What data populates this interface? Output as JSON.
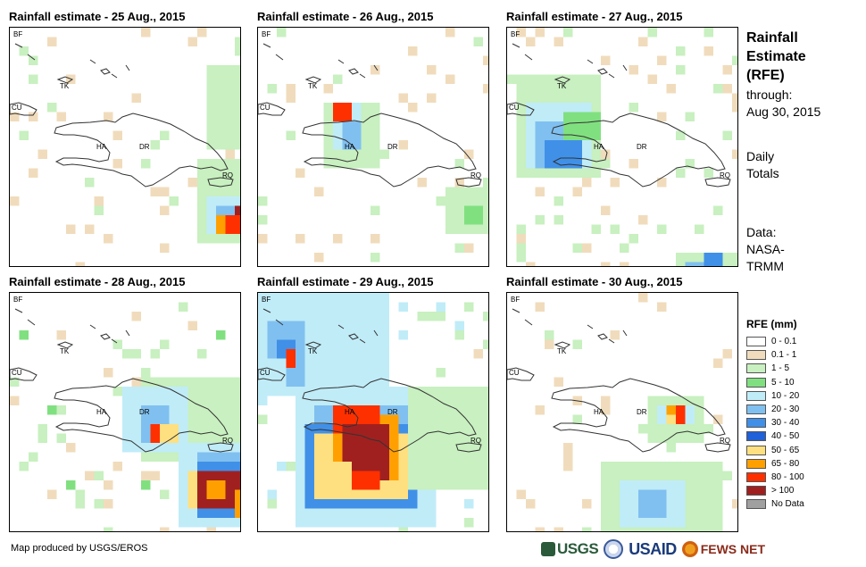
{
  "panels": [
    {
      "title": "Rainfall estimate - 25 Aug., 2015"
    },
    {
      "title": "Rainfall estimate - 26 Aug., 2015"
    },
    {
      "title": "Rainfall estimate - 27 Aug., 2015"
    },
    {
      "title": "Rainfall estimate - 28 Aug., 2015"
    },
    {
      "title": "Rainfall estimate - 29 Aug., 2015"
    },
    {
      "title": "Rainfall estimate - 30 Aug., 2015"
    }
  ],
  "map_labels": {
    "bf": "BF",
    "tk": "TK",
    "cu": "CU",
    "ha": "HA",
    "dr": "DR",
    "rq": "RQ"
  },
  "side": {
    "title_line1": "Rainfall",
    "title_line2": "Estimate",
    "title_line3": "(RFE)",
    "through_label": "through:",
    "through_date": "Aug 30, 2015",
    "totals_line1": "Daily",
    "totals_line2": "Totals",
    "data_line1": "Data:",
    "data_line2": "NASA-",
    "data_line3": "TRMM"
  },
  "legend": {
    "title": "RFE (mm)",
    "items": [
      {
        "label": "0 - 0.1",
        "color": "#ffffff"
      },
      {
        "label": "0.1 - 1",
        "color": "#f0dcbc"
      },
      {
        "label": "1 - 5",
        "color": "#c8f0c0"
      },
      {
        "label": "5 - 10",
        "color": "#80e080"
      },
      {
        "label": "10 - 20",
        "color": "#c0ecf8"
      },
      {
        "label": "20 - 30",
        "color": "#80c0f0"
      },
      {
        "label": "30 - 40",
        "color": "#4090e8"
      },
      {
        "label": "40 - 50",
        "color": "#2060d8"
      },
      {
        "label": "50 - 65",
        "color": "#ffe080"
      },
      {
        "label": "65 - 80",
        "color": "#ffa000"
      },
      {
        "label": "80 - 100",
        "color": "#ff3000"
      },
      {
        "label": "> 100",
        "color": "#a02020"
      },
      {
        "label": "No Data",
        "color": "#a0a0a0"
      }
    ]
  },
  "footer": {
    "produced_by": "Map produced by USGS/EROS",
    "logo_usgs": "USGS",
    "logo_usaid": "USAID",
    "logo_fews": "FEWS NET"
  }
}
